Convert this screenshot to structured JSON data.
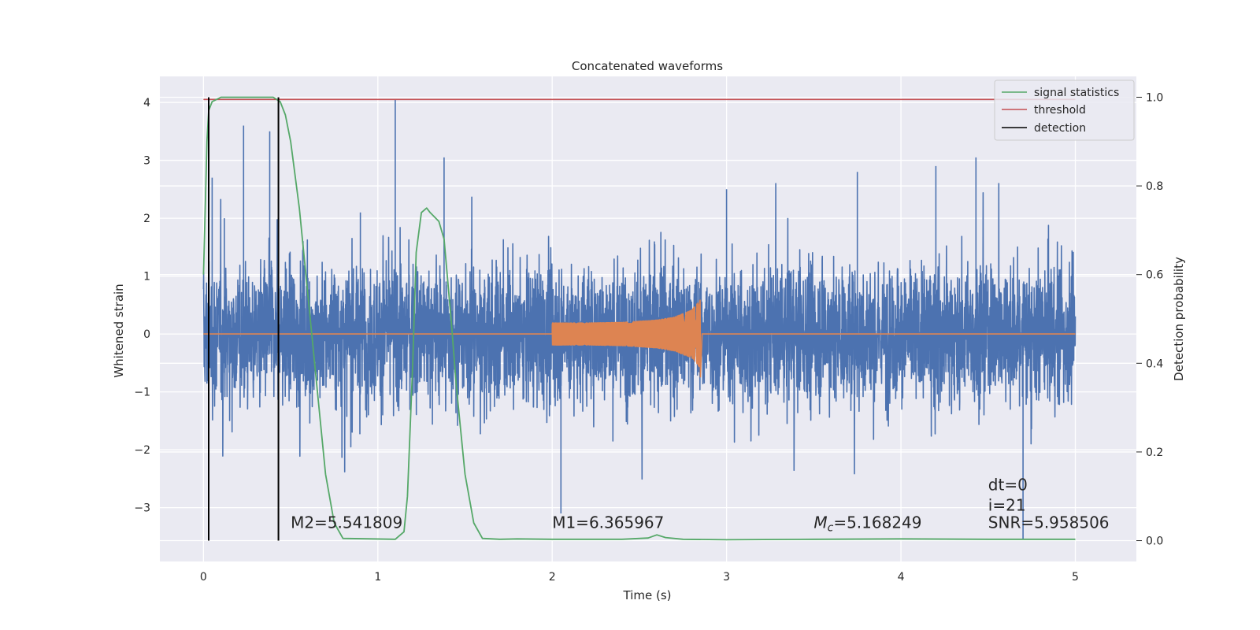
{
  "chart_data": {
    "type": "line",
    "title": "Concatenated waveforms",
    "xlabel": "Time (s)",
    "ylabel": "Whitened strain",
    "ylabel_right": "Detection probability",
    "xlim": [
      -0.25,
      5.35
    ],
    "ylim": [
      -3.93,
      4.45
    ],
    "ylim_right": [
      -0.047,
      1.047
    ],
    "x_ticks": [
      0,
      1,
      2,
      3,
      4,
      5
    ],
    "y_ticks": [
      -3,
      -2,
      -1,
      0,
      1,
      2,
      3,
      4
    ],
    "y_right_ticks": [
      0.0,
      0.2,
      0.4,
      0.6,
      0.8,
      1.0
    ],
    "grid": true,
    "legend_position": "top-right",
    "legend": [
      {
        "label": "signal statistics",
        "color": "#55a868"
      },
      {
        "label": "threshold",
        "color": "#c44e52"
      },
      {
        "label": "detection",
        "color": "#000000"
      }
    ],
    "series": [
      {
        "role": "whitened strain",
        "axis": "left",
        "color": "#4c72b0",
        "x_range": [
          0,
          5
        ],
        "amplitude_typical": 1.0,
        "peaks": [
          [
            0.05,
            2.7
          ],
          [
            0.12,
            2.0
          ],
          [
            0.23,
            3.6
          ],
          [
            0.38,
            3.5
          ],
          [
            0.9,
            2.1
          ],
          [
            1.1,
            4.05
          ],
          [
            1.38,
            3.05
          ],
          [
            2.05,
            -3.1
          ],
          [
            3.0,
            2.5
          ],
          [
            3.75,
            2.8
          ],
          [
            4.2,
            2.9
          ],
          [
            4.43,
            3.05
          ],
          [
            4.7,
            -3.55
          ]
        ]
      },
      {
        "role": "injected waveform",
        "axis": "left",
        "color": "#dd8452",
        "x": [
          2.0,
          2.2,
          2.4,
          2.6,
          2.7,
          2.8,
          2.85,
          2.86
        ],
        "envelope": [
          0.2,
          0.2,
          0.21,
          0.25,
          0.3,
          0.42,
          0.6,
          0.0
        ]
      },
      {
        "name": "signal statistics",
        "axis": "right",
        "color": "#55a868",
        "x": [
          0,
          0.01,
          0.02,
          0.03,
          0.05,
          0.1,
          0.2,
          0.4,
          0.44,
          0.47,
          0.5,
          0.55,
          0.6,
          0.65,
          0.7,
          0.75,
          0.8,
          1.1,
          1.15,
          1.17,
          1.2,
          1.22,
          1.25,
          1.28,
          1.3,
          1.35,
          1.38,
          1.42,
          1.45,
          1.5,
          1.55,
          1.6,
          1.7,
          1.8,
          2.0,
          2.4,
          2.55,
          2.6,
          2.65,
          2.75,
          3.0,
          3.5,
          4.0,
          4.5,
          5.0
        ],
        "y": [
          0.6,
          0.75,
          0.9,
          0.97,
          0.99,
          1.0,
          1.0,
          1.0,
          0.99,
          0.96,
          0.9,
          0.75,
          0.55,
          0.35,
          0.15,
          0.04,
          0.005,
          0.003,
          0.02,
          0.1,
          0.4,
          0.65,
          0.74,
          0.75,
          0.74,
          0.72,
          0.68,
          0.5,
          0.35,
          0.15,
          0.04,
          0.005,
          0.003,
          0.004,
          0.003,
          0.003,
          0.006,
          0.013,
          0.007,
          0.003,
          0.002,
          0.003,
          0.004,
          0.003,
          0.003
        ]
      },
      {
        "name": "threshold",
        "axis": "right",
        "color": "#c44e52",
        "x": [
          0,
          5
        ],
        "y": [
          0.995,
          0.995
        ]
      },
      {
        "name": "detection",
        "color": "#000000",
        "x": [
          0.03,
          0.43
        ]
      }
    ],
    "annotations": [
      {
        "text": "M2=5.541809",
        "x": 0.5,
        "y": -3.35
      },
      {
        "text": "M1=6.365967",
        "x": 2.0,
        "y": -3.35
      },
      {
        "text": "M",
        "sub": "c",
        "rest": "=5.168249",
        "x": 3.5,
        "y": -3.35
      },
      {
        "text": "dt=0",
        "x": 4.5,
        "y": -2.7
      },
      {
        "text": "i=21",
        "x": 4.5,
        "y": -3.05
      },
      {
        "text": "SNR=5.958506",
        "x": 4.5,
        "y": -3.35
      }
    ]
  }
}
